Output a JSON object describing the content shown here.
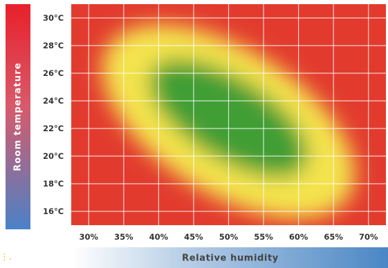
{
  "chart_data": {
    "type": "heatmap",
    "title": "",
    "xlabel": "Relative humidity",
    "ylabel": "Room temperature",
    "x_ticks": [
      "30%",
      "35%",
      "40%",
      "45%",
      "50%",
      "55%",
      "60%",
      "65%",
      "70%"
    ],
    "y_ticks": [
      "30°C",
      "28°C",
      "26°C",
      "24°C",
      "22°C",
      "20°C",
      "18°C",
      "16°C"
    ],
    "x_range": [
      27.5,
      72.5
    ],
    "y_range": [
      15,
      31
    ],
    "comfort_zone": {
      "description_colors": {
        "comfortable": "#3f9e34",
        "acceptable": "#f2e24a",
        "uncomfortable": "#e23b2e"
      },
      "optimal_center": {
        "humidity": 50,
        "temperature": 22.75
      },
      "acceptable_center": {
        "humidity": 50,
        "temperature": 22.5
      }
    },
    "grid": true
  },
  "decor": {
    "dots": "⋮."
  }
}
